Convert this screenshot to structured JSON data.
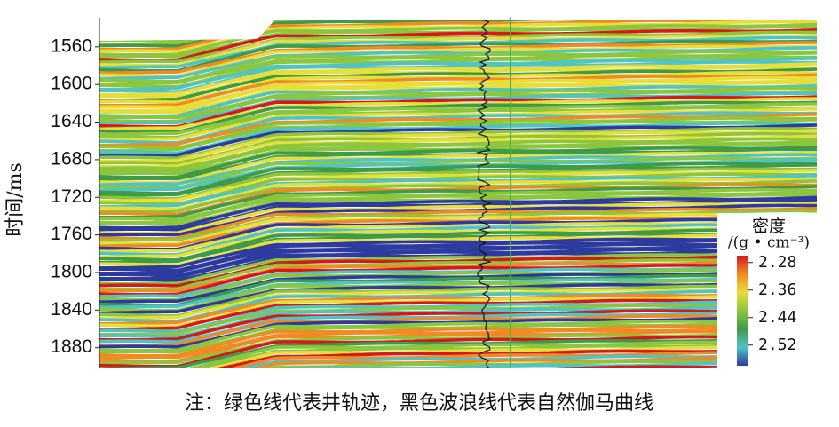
{
  "chart_data": {
    "type": "heatmap",
    "ylabel": "时间/ms",
    "ylim": [
      1529,
      1902
    ],
    "yticks": [
      1560,
      1600,
      1640,
      1680,
      1720,
      1760,
      1800,
      1840,
      1880
    ],
    "colorbar": {
      "title": "密度",
      "unit": "/(g • cm⁻³)",
      "lim": [
        2.26,
        2.58
      ],
      "ticks": [
        2.28,
        2.36,
        2.44,
        2.52
      ],
      "colors": [
        "#d7191c",
        "#f08a24",
        "#e8de3a",
        "#8cc63f",
        "#3f9a4a",
        "#50c4c4",
        "#2e3b9e"
      ]
    }
  },
  "note": "注：绿色线代表井轨迹，黑色波浪线代表自然伽马曲线"
}
